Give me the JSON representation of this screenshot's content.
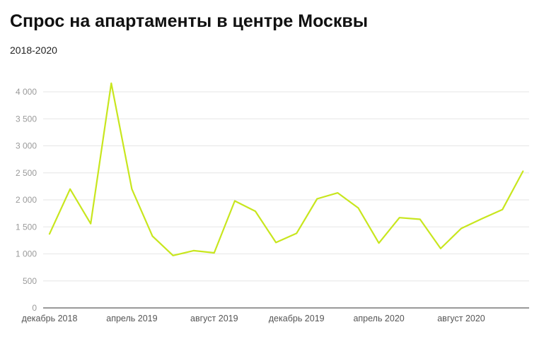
{
  "chart_data": {
    "type": "line",
    "title": "Спрос на апартаменты в центре Москвы",
    "subtitle": "2018-2020",
    "xlabel": "",
    "ylabel": "",
    "ylim": [
      0,
      4000
    ],
    "y_ticks": [
      {
        "value": 0,
        "label": "0"
      },
      {
        "value": 500,
        "label": "500"
      },
      {
        "value": 1000,
        "label": "1 000"
      },
      {
        "value": 1500,
        "label": "1 500"
      },
      {
        "value": 2000,
        "label": "2 000"
      },
      {
        "value": 2500,
        "label": "2 500"
      },
      {
        "value": 3000,
        "label": "3 000"
      },
      {
        "value": 3500,
        "label": "3 500"
      },
      {
        "value": 4000,
        "label": "4 000"
      }
    ],
    "x": [
      "2018-12",
      "2019-01",
      "2019-02",
      "2019-03",
      "2019-04",
      "2019-05",
      "2019-06",
      "2019-07",
      "2019-08",
      "2019-09",
      "2019-10",
      "2019-11",
      "2019-12",
      "2020-01",
      "2020-02",
      "2020-03",
      "2020-04",
      "2020-05",
      "2020-06",
      "2020-07",
      "2020-08",
      "2020-09",
      "2020-10",
      "2020-11",
      "2020-12"
    ],
    "x_ticks": [
      {
        "x": "2018-12",
        "label": "декабрь 2018"
      },
      {
        "x": "2019-04",
        "label": "апрель 2019"
      },
      {
        "x": "2019-08",
        "label": "август 2019"
      },
      {
        "x": "2019-12",
        "label": "декабрь 2019"
      },
      {
        "x": "2020-04",
        "label": "апрель 2020"
      },
      {
        "x": "2020-08",
        "label": "август 2020"
      }
    ],
    "series": [
      {
        "values": [
          1370,
          2200,
          1560,
          4160,
          2200,
          1330,
          970,
          1060,
          1020,
          1980,
          1790,
          1210,
          1380,
          2020,
          2130,
          1850,
          1200,
          1670,
          1640,
          1100,
          1470,
          1650,
          1820,
          2530,
          null
        ],
        "color": "#c8e61e"
      }
    ],
    "grid": true,
    "legend": "none"
  }
}
